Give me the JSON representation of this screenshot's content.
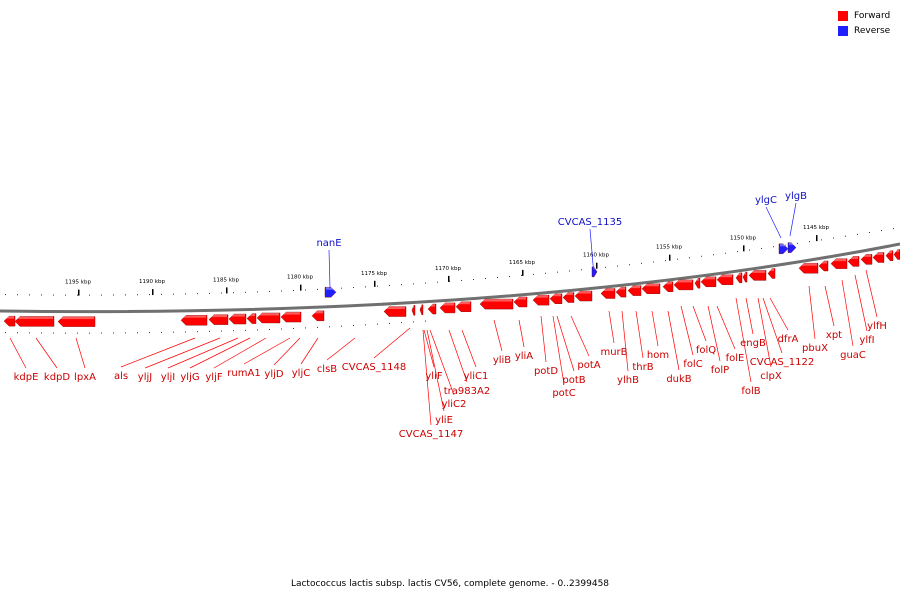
{
  "colors": {
    "forward": "#ff0000",
    "reverse": "#1f1fff",
    "label_forward": "#cc0000",
    "label_reverse": "#1010c8",
    "backbone": "#707070"
  },
  "legend": {
    "forward": "Forward",
    "reverse": "Reverse"
  },
  "caption": "Lactococcus lactis subsp. lactis CV56, complete genome. - 0..2399458",
  "scale_labels": [
    "1195 kbp",
    "1190 kbp",
    "1185 kbp",
    "1180 kbp",
    "1175 kbp",
    "1170 kbp",
    "1165 kbp",
    "1160 kbp",
    "1155 kbp",
    "1150 kbp",
    "1145 kbp"
  ],
  "genes_forward": [
    "kdpE",
    "kdpD",
    "lpxA",
    "als",
    "yljJ",
    "yljI",
    "yljG",
    "yljF",
    "rumA1",
    "yljD",
    "yljC",
    "clsB",
    "CVCAS_1148",
    "yliF",
    "yliC2",
    "yliE",
    "CVCAS_1147",
    "tra983A2",
    "yliC1",
    "yliB",
    "yliA",
    "potD",
    "potB",
    "potC",
    "potA",
    "murB",
    "ylhB",
    "thrB",
    "hom",
    "dukB",
    "folC",
    "folQ",
    "folP",
    "folE",
    "folB",
    "engB",
    "clpX",
    "CVCAS_1122",
    "dfrA",
    "pbuX",
    "xpt",
    "guaC",
    "ylfI",
    "ylfH"
  ],
  "genes_reverse": [
    "nanE",
    "CVCAS_1135",
    "ylgC",
    "ylgB"
  ]
}
